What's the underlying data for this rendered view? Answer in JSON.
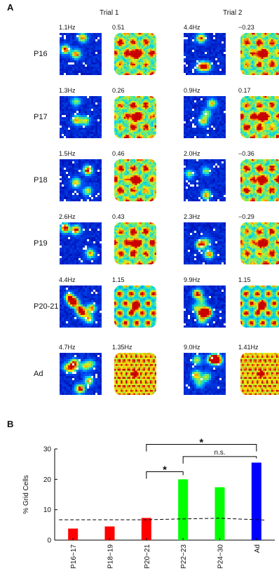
{
  "panel_a": {
    "letter": "A",
    "trial1": "Trial 1",
    "trial2": "Trial 2",
    "rows": [
      {
        "label": "P16",
        "t1_rate": "1.1Hz",
        "t1_score": "0.51",
        "t2_rate": "4.4Hz",
        "t2_score": "−0.23"
      },
      {
        "label": "P17",
        "t1_rate": "1.3Hz",
        "t1_score": "0.26",
        "t2_rate": "0.9Hz",
        "t2_score": "0.17"
      },
      {
        "label": "P18",
        "t1_rate": "1.5Hz",
        "t1_score": "0.46",
        "t2_rate": "2.0Hz",
        "t2_score": "−0.36"
      },
      {
        "label": "P19",
        "t1_rate": "2.6Hz",
        "t1_score": "0.43",
        "t2_rate": "2.3Hz",
        "t2_score": "−0.29"
      },
      {
        "label": "P20-21",
        "t1_rate": "4.4Hz",
        "t1_score": "1.15",
        "t2_rate": "9.9Hz",
        "t2_score": "1.15"
      },
      {
        "label": "Ad",
        "t1_rate": "4.7Hz",
        "t1_score": "1.35Hz",
        "t2_rate": "9.0Hz",
        "t2_score": "1.41Hz"
      }
    ]
  },
  "panel_b": {
    "letter": "B"
  },
  "chart_data": {
    "type": "bar",
    "ylabel": "% Grid Cells",
    "xlabel": "",
    "ylim": [
      0,
      30
    ],
    "yticks": [
      0,
      10,
      20,
      30
    ],
    "categories": [
      "P16−17",
      "P18−19",
      "P20−21",
      "P22−23",
      "P24−30",
      "Ad"
    ],
    "values": [
      3.8,
      4.5,
      7.3,
      20.0,
      17.4,
      25.5
    ],
    "bar_colors": [
      "#ff0000",
      "#ff0000",
      "#ff0000",
      "#00ff00",
      "#00ff00",
      "#0000ff"
    ],
    "threshold_line": {
      "style": "dashed",
      "values": [
        6.7,
        6.7,
        6.7,
        7.0,
        7.2,
        6.6
      ]
    },
    "significance": [
      {
        "from": "P20−21",
        "to": "P22−23",
        "label": "*"
      },
      {
        "from": "P22−23",
        "to": "Ad",
        "label": "n.s."
      },
      {
        "from": "P20−21",
        "to": "Ad",
        "label": "*"
      }
    ]
  }
}
